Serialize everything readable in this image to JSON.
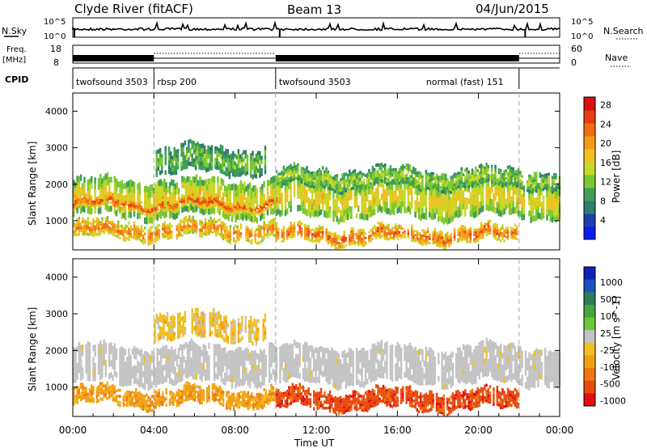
{
  "header": {
    "station": "Clyde River (fitACF)",
    "beam": "Beam 13",
    "date": "04/Jun/2015"
  },
  "strip_labels": {
    "nsky": "N.Sky",
    "nsky_ticks": [
      "10^5",
      "10^0"
    ],
    "nsearch": "N.Search",
    "nsearch_ticks": [
      "10^5",
      "10^0"
    ],
    "freq": "Freq.",
    "freq_unit": "[MHz]",
    "freq_ticks": [
      "18",
      "8"
    ],
    "nave": "Nave",
    "nave_ticks": [
      "60",
      "0"
    ],
    "cpid": "CPID"
  },
  "cpid_segments": [
    {
      "label": "twofsound 3503",
      "start_hour": 0.0,
      "end_hour": 4.0
    },
    {
      "label": "rbsp 200",
      "start_hour": 4.0,
      "end_hour": 10.0
    },
    {
      "label": "twofsound 3503",
      "start_hour": 10.0,
      "end_hour": 22.0
    },
    {
      "label": "normal (fast) 151",
      "start_hour": 22.0,
      "end_hour": 24.0
    }
  ],
  "chart_data": [
    {
      "type": "heatmap",
      "panel": "power",
      "ylabel": "Slant Range [km]",
      "yticks": [
        "1000",
        "2000",
        "3000",
        "4000"
      ],
      "ylim": [
        200,
        4500
      ],
      "xlim": [
        0,
        24
      ],
      "colorbar": {
        "label": "Power [dB]",
        "ticks": [
          "4",
          "8",
          "12",
          "16",
          "20",
          "24",
          "28"
        ],
        "range": [
          0,
          30
        ],
        "colors": [
          "#0a1cf5",
          "#1f3fb0",
          "#2f7d6b",
          "#3f9f55",
          "#7dc832",
          "#c8d828",
          "#f0c020",
          "#f59a18",
          "#ef6e12",
          "#e63c10",
          "#d81010"
        ]
      },
      "bands": [
        {
          "start_hour": 0.0,
          "end_hour": 24.0,
          "range_km": [
            1100,
            2100
          ],
          "level_db": 18
        },
        {
          "start_hour": 0.0,
          "end_hour": 10.0,
          "range_km": [
            1300,
            1600
          ],
          "level_db": 27
        },
        {
          "start_hour": 0.0,
          "end_hour": 10.0,
          "range_km": [
            500,
            950
          ],
          "level_db": 24
        },
        {
          "start_hour": 10.0,
          "end_hour": 22.0,
          "range_km": [
            400,
            800
          ],
          "level_db": 26
        },
        {
          "start_hour": 10.0,
          "end_hour": 24.0,
          "range_km": [
            1900,
            2400
          ],
          "level_db": 14
        },
        {
          "start_hour": 4.0,
          "end_hour": 9.5,
          "range_km": [
            2300,
            3000
          ],
          "level_db": 12
        }
      ]
    },
    {
      "type": "heatmap",
      "panel": "velocity",
      "ylabel": "Slant Range [km]",
      "yticks": [
        "1000",
        "2000",
        "3000",
        "4000"
      ],
      "ylim": [
        200,
        4500
      ],
      "xlim": [
        0,
        24
      ],
      "colorbar": {
        "label": "Velocity [m s^-1]",
        "ticks": [
          "1000",
          "500",
          "100",
          "25",
          "-25",
          "-100",
          "-500",
          "-1000"
        ],
        "colors": [
          "#1020b8",
          "#2050c0",
          "#2d7d5a",
          "#44a640",
          "#6cc838",
          "#c4c4c4",
          "#f0c020",
          "#f0a018",
          "#ef7812",
          "#e84a10",
          "#e01010"
        ]
      },
      "bands": [
        {
          "start_hour": 0.0,
          "end_hour": 24.0,
          "range_km": [
            1100,
            2100
          ],
          "velocity": "ground"
        },
        {
          "start_hour": 0.0,
          "end_hour": 10.0,
          "range_km": [
            500,
            950
          ],
          "velocity": "-100"
        },
        {
          "start_hour": 10.0,
          "end_hour": 22.0,
          "range_km": [
            400,
            900
          ],
          "velocity": "-500"
        },
        {
          "start_hour": 4.0,
          "end_hour": 9.5,
          "range_km": [
            2300,
            3000
          ],
          "velocity": "-25"
        }
      ]
    }
  ],
  "time_axis": {
    "ticks": [
      "00:00",
      "04:00",
      "08:00",
      "12:00",
      "16:00",
      "20:00",
      "00:00"
    ],
    "label": "Time UT"
  }
}
